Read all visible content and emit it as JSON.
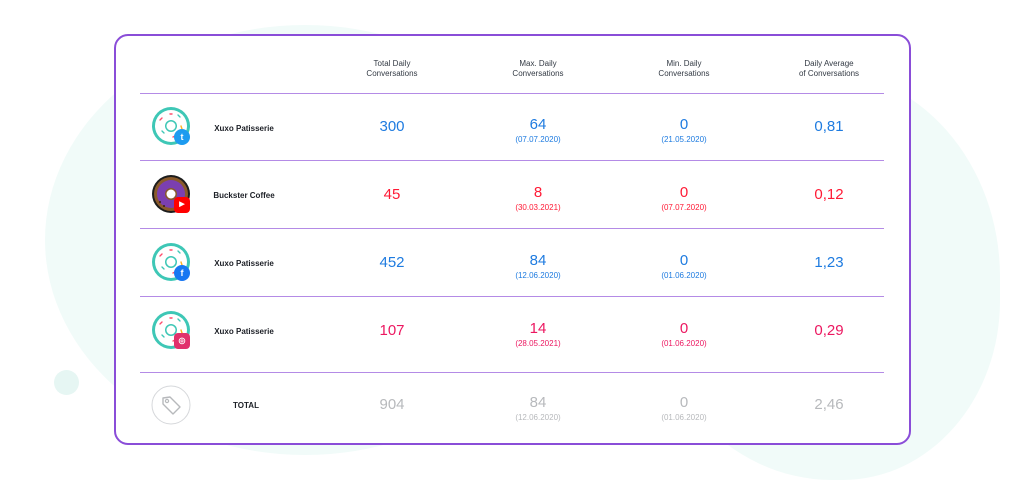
{
  "headers": [
    [
      "Total Daily",
      "Conversations"
    ],
    [
      "Max. Daily",
      "Conversations"
    ],
    [
      "Min. Daily",
      "Conversations"
    ],
    [
      "Daily Average",
      "of Conversations"
    ]
  ],
  "rows": [
    {
      "name": "Xuxo Patisserie",
      "platform": "twitter-icon",
      "total": "300",
      "max": "64",
      "max_date": "(07.07.2020)",
      "min": "0",
      "min_date": "(21.05.2020)",
      "avg": "0,81",
      "color": "#1e7be0"
    },
    {
      "name": "Buckster Coffee",
      "platform": "youtube-icon",
      "total": "45",
      "max": "8",
      "max_date": "(30.03.2021)",
      "min": "0",
      "min_date": "(07.07.2020)",
      "avg": "0,12",
      "color": "#ff1a35"
    },
    {
      "name": "Xuxo Patisserie",
      "platform": "facebook-icon",
      "total": "452",
      "max": "84",
      "max_date": "(12.06.2020)",
      "min": "0",
      "min_date": "(01.06.2020)",
      "avg": "1,23",
      "color": "#1e7be0"
    },
    {
      "name": "Xuxo Patisserie",
      "platform": "instagram-icon",
      "total": "107",
      "max": "14",
      "max_date": "(28.05.2021)",
      "min": "0",
      "min_date": "(01.06.2020)",
      "avg": "0,29",
      "color": "#ec1760"
    }
  ],
  "total_row": {
    "name": "TOTAL",
    "icon": "tag-icon",
    "total": "904",
    "max": "84",
    "max_date": "(12.06.2020)",
    "min": "0",
    "min_date": "(01.06.2020)",
    "avg": "2,46",
    "color": "#b7b9bc"
  },
  "colors": {
    "card_border": "#8a4dd8",
    "separator": "#b48be6",
    "donut_frosting": "#ffffff",
    "donut_dough": "#3ec7b6",
    "coffee_frosting": "#7b3fb0",
    "coffee_dough": "#8a5a2b"
  }
}
